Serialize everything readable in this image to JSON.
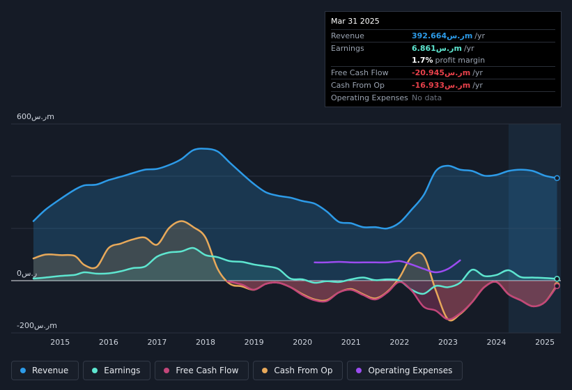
{
  "tooltip": {
    "date": "Mar 31 2025",
    "rows": [
      {
        "label": "Revenue",
        "value": "392.664ر.سm",
        "unit": "/yr",
        "color": "#2d9be8"
      },
      {
        "label": "Earnings",
        "value": "6.861ر.سm",
        "unit": "/yr",
        "color": "#5ee6d0"
      },
      {
        "label": "",
        "value": "1.7%",
        "unit": "profit margin",
        "color": "#ffffff"
      },
      {
        "label": "Free Cash Flow",
        "value": "-20.945ر.سm",
        "unit": "/yr",
        "color": "#e8414b"
      },
      {
        "label": "Cash From Op",
        "value": "-16.933ر.سm",
        "unit": "/yr",
        "color": "#e8414b"
      },
      {
        "label": "Operating Expenses",
        "value": "No data",
        "unit": "",
        "color": "#6d7480"
      }
    ]
  },
  "legend": [
    {
      "label": "Revenue",
      "color": "#2d9be8"
    },
    {
      "label": "Earnings",
      "color": "#5ee6d0"
    },
    {
      "label": "Free Cash Flow",
      "color": "#c2467a"
    },
    {
      "label": "Cash From Op",
      "color": "#e8a95a"
    },
    {
      "label": "Operating Expenses",
      "color": "#9b4cf0"
    }
  ],
  "chart_data": {
    "type": "area",
    "title": "",
    "xlabel": "",
    "ylabel": "",
    "units": "ر.سm",
    "ylim": [
      -200,
      600
    ],
    "y_ticks": [
      {
        "value": 600,
        "label": "600ر.سm"
      },
      {
        "value": 0,
        "label": "0ر.س"
      },
      {
        "value": -200,
        "label": "-200ر.سm"
      }
    ],
    "xlim": [
      2014.45,
      2025.3
    ],
    "x_ticks": [
      "2015",
      "2016",
      "2017",
      "2018",
      "2019",
      "2020",
      "2021",
      "2022",
      "2023",
      "2024",
      "2025"
    ],
    "highlight_from": 2024.25,
    "series": [
      {
        "name": "Revenue",
        "color": "#2d9be8",
        "x": [
          2014.45,
          2014.7,
          2015.0,
          2015.3,
          2015.5,
          2015.75,
          2016.0,
          2016.25,
          2016.5,
          2016.75,
          2017.0,
          2017.25,
          2017.5,
          2017.75,
          2018.0,
          2018.25,
          2018.5,
          2018.75,
          2019.0,
          2019.25,
          2019.5,
          2019.75,
          2020.0,
          2020.25,
          2020.5,
          2020.75,
          2021.0,
          2021.25,
          2021.5,
          2021.75,
          2022.0,
          2022.25,
          2022.5,
          2022.75,
          2023.0,
          2023.25,
          2023.5,
          2023.75,
          2024.0,
          2024.25,
          2024.5,
          2024.75,
          2025.0,
          2025.25
        ],
        "values": [
          228,
          272,
          312,
          348,
          365,
          368,
          385,
          398,
          412,
          425,
          428,
          443,
          465,
          500,
          505,
          495,
          452,
          410,
          370,
          338,
          325,
          318,
          305,
          295,
          265,
          225,
          220,
          205,
          205,
          200,
          222,
          272,
          328,
          420,
          440,
          425,
          420,
          402,
          405,
          420,
          425,
          420,
          402,
          392.664
        ]
      },
      {
        "name": "Earnings",
        "color": "#5ee6d0",
        "x": [
          2014.45,
          2014.7,
          2015.0,
          2015.3,
          2015.5,
          2015.75,
          2016.0,
          2016.25,
          2016.5,
          2016.75,
          2017.0,
          2017.25,
          2017.5,
          2017.75,
          2018.0,
          2018.25,
          2018.5,
          2018.75,
          2019.0,
          2019.25,
          2019.5,
          2019.75,
          2020.0,
          2020.25,
          2020.5,
          2020.75,
          2021.0,
          2021.25,
          2021.5,
          2021.75,
          2022.0,
          2022.25,
          2022.5,
          2022.75,
          2023.0,
          2023.25,
          2023.5,
          2023.75,
          2024.0,
          2024.25,
          2024.5,
          2024.75,
          2025.0,
          2025.25
        ],
        "values": [
          8,
          12,
          18,
          22,
          32,
          27,
          28,
          36,
          48,
          54,
          92,
          108,
          112,
          125,
          98,
          90,
          75,
          72,
          62,
          55,
          45,
          8,
          5,
          -8,
          -2,
          -5,
          5,
          12,
          2,
          5,
          0,
          -35,
          -50,
          -20,
          -25,
          -8,
          42,
          18,
          22,
          40,
          14,
          12,
          10,
          6.861
        ]
      },
      {
        "name": "Free Cash Flow",
        "color": "#c2467a",
        "x": [
          2018.45,
          2018.75,
          2019.0,
          2019.25,
          2019.5,
          2019.75,
          2020.0,
          2020.25,
          2020.5,
          2020.75,
          2021.0,
          2021.25,
          2021.5,
          2021.75,
          2022.0,
          2022.25,
          2022.5,
          2022.75,
          2023.0,
          2023.25,
          2023.5,
          2023.75,
          2024.0,
          2024.25,
          2024.5,
          2024.75,
          2025.0,
          2025.25
        ],
        "values": [
          -2,
          -15,
          -35,
          -12,
          -8,
          -25,
          -55,
          -75,
          -78,
          -45,
          -35,
          -55,
          -72,
          -45,
          -5,
          -38,
          -100,
          -115,
          -148,
          -125,
          -82,
          -25,
          -5,
          -52,
          -75,
          -98,
          -82,
          -20.945
        ]
      },
      {
        "name": "Cash From Op",
        "color": "#e8a95a",
        "x": [
          2014.45,
          2014.7,
          2015.0,
          2015.3,
          2015.5,
          2015.75,
          2016.0,
          2016.25,
          2016.5,
          2016.75,
          2017.0,
          2017.25,
          2017.5,
          2017.75,
          2018.0,
          2018.25,
          2018.5,
          2018.75,
          2019.0,
          2019.25,
          2019.5,
          2019.75,
          2020.0,
          2020.25,
          2020.5,
          2020.75,
          2021.0,
          2021.25,
          2021.5,
          2021.75,
          2022.0,
          2022.25,
          2022.5,
          2022.75,
          2023.0,
          2023.25,
          2023.5,
          2023.75,
          2024.0,
          2024.25,
          2024.5,
          2024.75,
          2025.0,
          2025.25
        ],
        "values": [
          85,
          100,
          98,
          95,
          60,
          52,
          125,
          142,
          158,
          165,
          138,
          202,
          228,
          205,
          165,
          45,
          -12,
          -22,
          -35,
          -12,
          -8,
          -25,
          -52,
          -72,
          -75,
          -45,
          -32,
          -52,
          -68,
          -42,
          12,
          92,
          95,
          -38,
          -148,
          -128,
          -82,
          -25,
          -5,
          -52,
          -75,
          -98,
          -82,
          -16.933
        ]
      },
      {
        "name": "Operating Expenses",
        "color": "#9b4cf0",
        "x": [
          2020.25,
          2020.5,
          2020.75,
          2021.0,
          2021.25,
          2021.5,
          2021.75,
          2022.0,
          2022.25,
          2022.5,
          2022.75,
          2023.0,
          2023.25
        ],
        "values": [
          70,
          70,
          72,
          70,
          70,
          70,
          70,
          75,
          62,
          45,
          32,
          45,
          78
        ]
      }
    ]
  }
}
